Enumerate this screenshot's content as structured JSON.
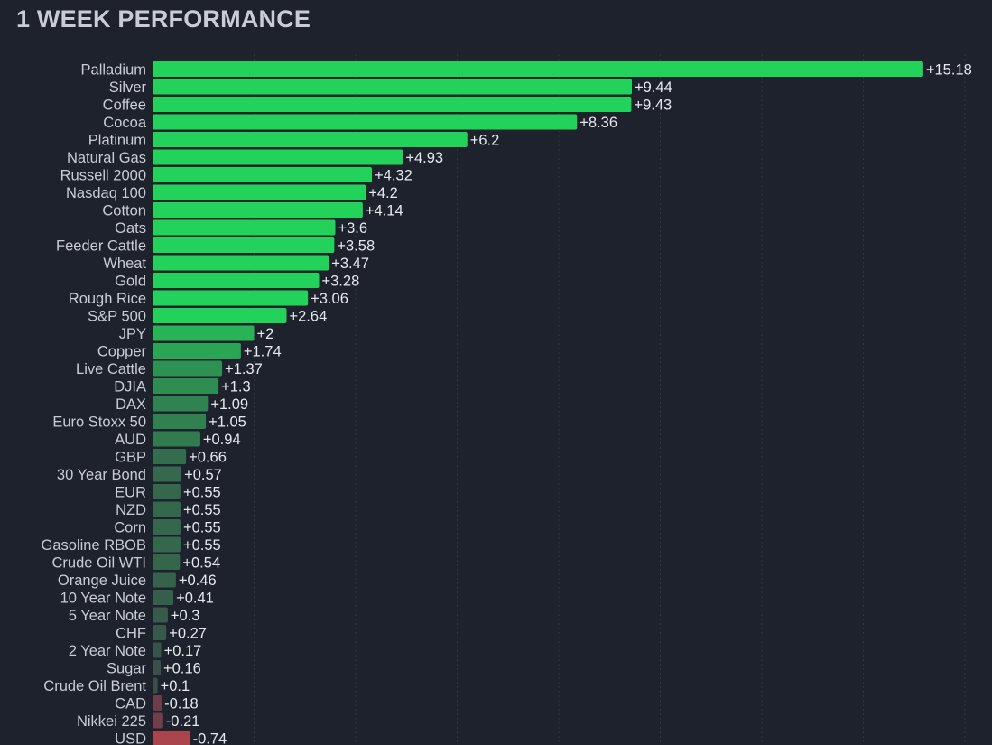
{
  "chart_data": {
    "type": "bar",
    "orientation": "horizontal",
    "title": "1 WEEK PERFORMANCE",
    "xlabel": "",
    "ylabel": "",
    "xlim": [
      -0.74,
      15.18
    ],
    "grid": true,
    "legend": "none",
    "categories": [
      "Palladium",
      "Silver",
      "Coffee",
      "Cocoa",
      "Platinum",
      "Natural Gas",
      "Russell 2000",
      "Nasdaq 100",
      "Cotton",
      "Oats",
      "Feeder Cattle",
      "Wheat",
      "Gold",
      "Rough Rice",
      "S&P 500",
      "JPY",
      "Copper",
      "Live Cattle",
      "DJIA",
      "DAX",
      "Euro Stoxx 50",
      "AUD",
      "GBP",
      "30 Year Bond",
      "EUR",
      "NZD",
      "Corn",
      "Gasoline RBOB",
      "Crude Oil WTI",
      "Orange Juice",
      "10 Year Note",
      "5 Year Note",
      "CHF",
      "2 Year Note",
      "Sugar",
      "Crude Oil Brent",
      "CAD",
      "Nikkei 225",
      "USD"
    ],
    "values": [
      15.18,
      9.44,
      9.43,
      8.36,
      6.2,
      4.93,
      4.32,
      4.2,
      4.14,
      3.6,
      3.58,
      3.47,
      3.28,
      3.06,
      2.64,
      2,
      1.74,
      1.37,
      1.3,
      1.09,
      1.05,
      0.94,
      0.66,
      0.57,
      0.55,
      0.55,
      0.55,
      0.55,
      0.54,
      0.46,
      0.41,
      0.3,
      0.27,
      0.17,
      0.16,
      0.1,
      -0.18,
      -0.21,
      -0.74
    ],
    "value_labels": [
      "+15.18",
      "+9.44",
      "+9.43",
      "+8.36",
      "+6.2",
      "+4.93",
      "+4.32",
      "+4.2",
      "+4.14",
      "+3.6",
      "+3.58",
      "+3.47",
      "+3.28",
      "+3.06",
      "+2.64",
      "+2",
      "+1.74",
      "+1.37",
      "+1.3",
      "+1.09",
      "+1.05",
      "+0.94",
      "+0.66",
      "+0.57",
      "+0.55",
      "+0.55",
      "+0.55",
      "+0.55",
      "+0.54",
      "+0.46",
      "+0.41",
      "+0.3",
      "+0.27",
      "+0.17",
      "+0.16",
      "+0.1",
      "-0.18",
      "-0.21",
      "-0.74"
    ],
    "colors": {
      "background": "#1e222d",
      "positive_strong": "#22d25a",
      "positive_weak": "#3a4a48",
      "negative_weak": "#5a3c48",
      "negative_strong": "#b0454d",
      "gridline": "#2f3442",
      "label_text": "#c9ccd4",
      "value_text": "#e6e8ee"
    }
  }
}
